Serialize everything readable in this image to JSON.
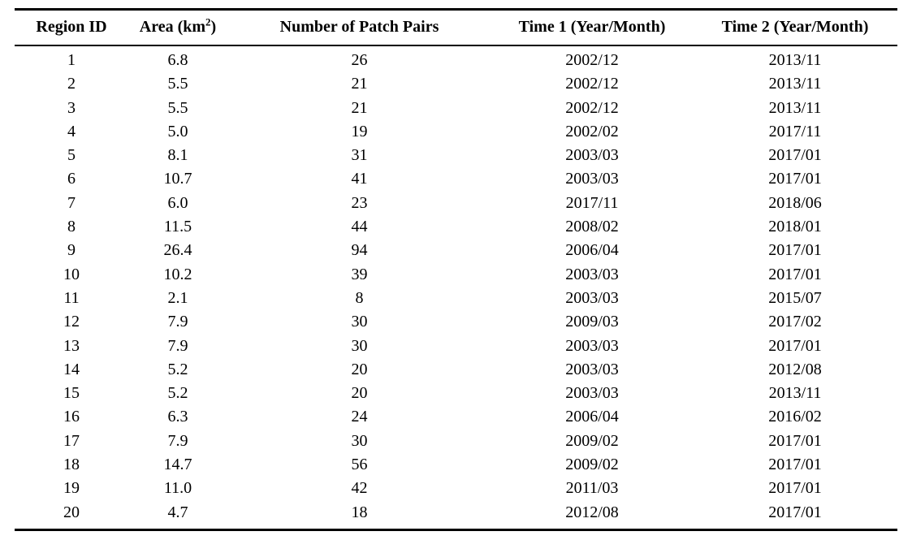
{
  "table": {
    "column_keys": [
      "region-id",
      "area",
      "patch-pairs",
      "time-1",
      "time-2"
    ],
    "columns": [
      {
        "label": "Region ID"
      },
      {
        "label_parts": {
          "pre": "Area (km",
          "sup": "2",
          "post": ")"
        }
      },
      {
        "label": "Number of Patch Pairs"
      },
      {
        "label": "Time 1 (Year/Month)"
      },
      {
        "label": "Time 2 (Year/Month)"
      }
    ],
    "rows": [
      [
        "1",
        "6.8",
        "26",
        "2002/12",
        "2013/11"
      ],
      [
        "2",
        "5.5",
        "21",
        "2002/12",
        "2013/11"
      ],
      [
        "3",
        "5.5",
        "21",
        "2002/12",
        "2013/11"
      ],
      [
        "4",
        "5.0",
        "19",
        "2002/02",
        "2017/11"
      ],
      [
        "5",
        "8.1",
        "31",
        "2003/03",
        "2017/01"
      ],
      [
        "6",
        "10.7",
        "41",
        "2003/03",
        "2017/01"
      ],
      [
        "7",
        "6.0",
        "23",
        "2017/11",
        "2018/06"
      ],
      [
        "8",
        "11.5",
        "44",
        "2008/02",
        "2018/01"
      ],
      [
        "9",
        "26.4",
        "94",
        "2006/04",
        "2017/01"
      ],
      [
        "10",
        "10.2",
        "39",
        "2003/03",
        "2017/01"
      ],
      [
        "11",
        "2.1",
        "8",
        "2003/03",
        "2015/07"
      ],
      [
        "12",
        "7.9",
        "30",
        "2009/03",
        "2017/02"
      ],
      [
        "13",
        "7.9",
        "30",
        "2003/03",
        "2017/01"
      ],
      [
        "14",
        "5.2",
        "20",
        "2003/03",
        "2012/08"
      ],
      [
        "15",
        "5.2",
        "20",
        "2003/03",
        "2013/11"
      ],
      [
        "16",
        "6.3",
        "24",
        "2006/04",
        "2016/02"
      ],
      [
        "17",
        "7.9",
        "30",
        "2009/02",
        "2017/01"
      ],
      [
        "18",
        "14.7",
        "56",
        "2009/02",
        "2017/01"
      ],
      [
        "19",
        "11.0",
        "42",
        "2011/03",
        "2017/01"
      ],
      [
        "20",
        "4.7",
        "18",
        "2012/08",
        "2017/01"
      ]
    ],
    "colors": {
      "text": "#000000",
      "rule": "#000000",
      "background": "#ffffff"
    }
  }
}
